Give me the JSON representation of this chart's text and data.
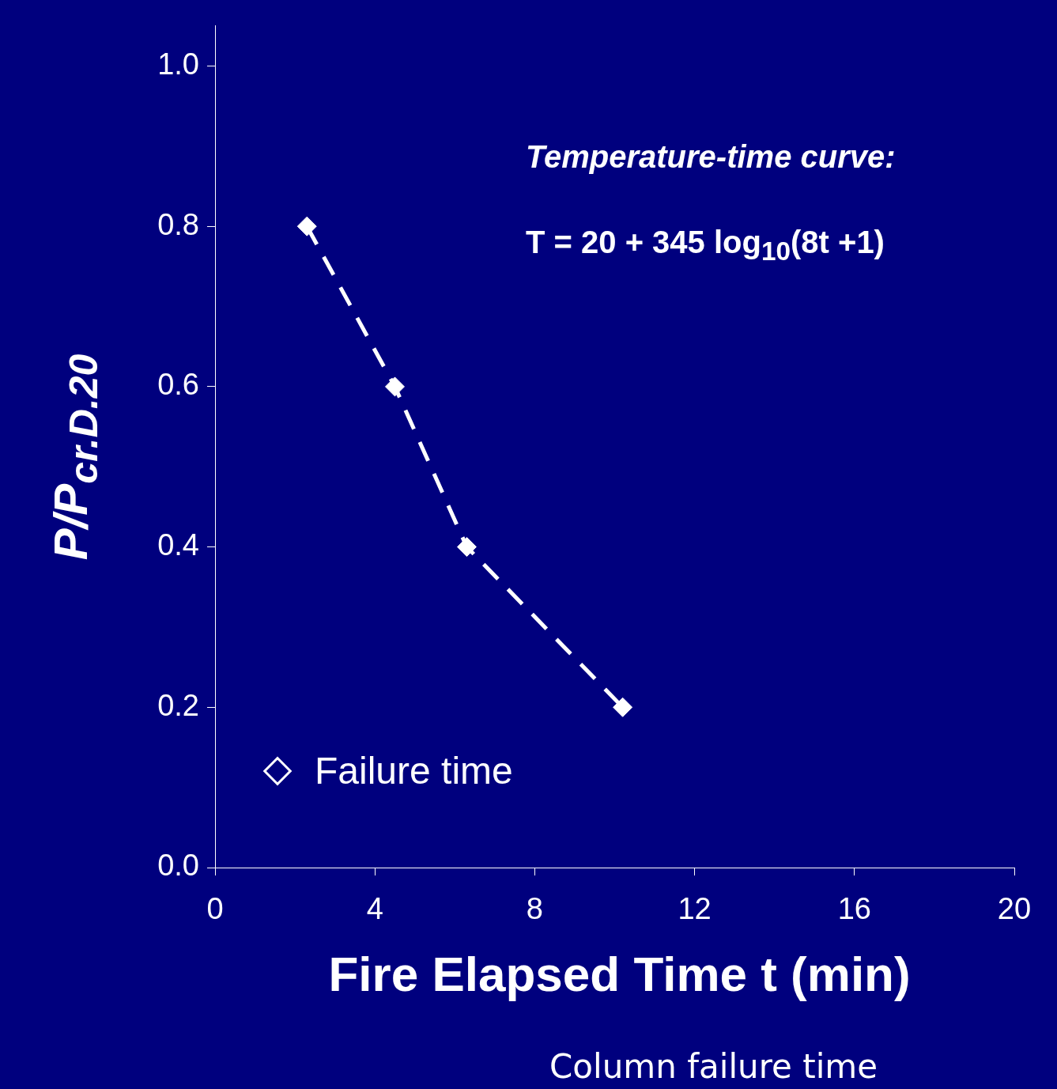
{
  "chart_data": {
    "type": "line",
    "xlabel": "Fire Elapsed Time t (min)",
    "ylabel": "P/P$_{cr.D.20}$",
    "annotations": [
      "Temperature-time curve:",
      "T = 20 + 345 log$_{10}$(8t +1)",
      "Column failure time"
    ],
    "x": [
      2.3,
      4.5,
      6.3,
      10.2
    ],
    "series": [
      {
        "name": "Failure time",
        "color": "#ffffff",
        "values": [
          0.8,
          0.6,
          0.4,
          0.2
        ]
      }
    ],
    "xlim": [
      0,
      20
    ],
    "xticks": [
      0,
      4,
      8,
      12,
      16,
      20
    ],
    "ylim": [
      0,
      1.05
    ],
    "yticks": [
      {
        "value": 0,
        "label": "0.0"
      },
      0.2,
      0.4,
      0.6,
      0.8,
      {
        "value": 1,
        "label": "1.0"
      }
    ],
    "grid": false,
    "legend": "bottom left",
    "marker": "diamond",
    "line_style": "dashed"
  }
}
